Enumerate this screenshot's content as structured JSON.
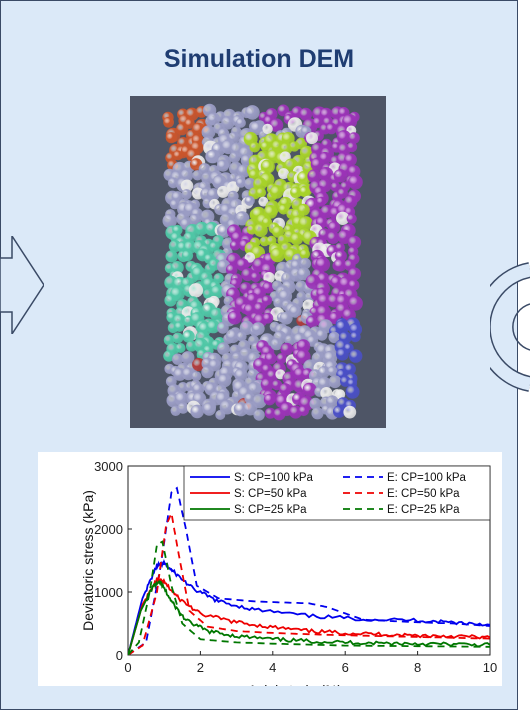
{
  "panel": {
    "title": "Simulation DEM"
  },
  "render": {
    "description_colors": [
      "#9a9cc4",
      "#9b33b7",
      "#a7d229",
      "#4fc7a6",
      "#c9552c",
      "#4a4fc6",
      "#e7e7e7",
      "#b03c3c"
    ]
  },
  "chart_data": {
    "type": "line",
    "xlabel": "Axial strain (%)",
    "ylabel": "Deviatoric stress (kPa)",
    "xlim": [
      0,
      10
    ],
    "ylim": [
      0,
      3000
    ],
    "xticks": [
      "0",
      "2",
      "4",
      "6",
      "8",
      "10"
    ],
    "yticks": [
      "0",
      "1000",
      "2000",
      "3000"
    ],
    "legend_position": "top-right",
    "series": [
      {
        "name": "S: CP=100 kPa",
        "color": "#0000ee",
        "dash": "solid",
        "x": [
          0,
          0.4,
          0.8,
          1.0,
          1.3,
          1.8,
          2.5,
          3.5,
          5,
          6.5,
          8,
          9,
          10
        ],
        "y": [
          0,
          900,
          1420,
          1450,
          1300,
          1050,
          850,
          720,
          620,
          570,
          550,
          520,
          480
        ]
      },
      {
        "name": "E: CP=100 kPa",
        "color": "#0000ee",
        "dash": "dashed",
        "x": [
          0,
          0.5,
          0.9,
          1.2,
          1.35,
          1.6,
          1.9,
          2.5,
          3.5,
          5,
          5.5,
          6.5,
          8,
          9,
          10
        ],
        "y": [
          0,
          200,
          1400,
          2580,
          2650,
          2000,
          1100,
          900,
          850,
          820,
          760,
          560,
          520,
          500,
          460
        ]
      },
      {
        "name": "S: CP=50 kPa",
        "color": "#ee0000",
        "dash": "solid",
        "x": [
          0,
          0.4,
          0.8,
          1.0,
          1.4,
          2,
          3,
          4,
          5,
          6,
          7,
          8,
          9,
          10
        ],
        "y": [
          0,
          800,
          1200,
          1150,
          900,
          650,
          520,
          440,
          380,
          350,
          330,
          310,
          300,
          280
        ]
      },
      {
        "name": "E: CP=50 kPa",
        "color": "#ee0000",
        "dash": "dashed",
        "x": [
          0,
          0.4,
          0.8,
          1.05,
          1.2,
          1.4,
          1.7,
          2.2,
          3,
          4,
          5.5,
          7,
          8.5,
          10
        ],
        "y": [
          0,
          150,
          1000,
          2050,
          2250,
          1600,
          700,
          450,
          380,
          350,
          320,
          300,
          280,
          260
        ]
      },
      {
        "name": "S: CP=25 kPa",
        "color": "#007700",
        "dash": "solid",
        "x": [
          0,
          0.35,
          0.7,
          0.9,
          1.2,
          1.6,
          2.2,
          3,
          4,
          5,
          6,
          7,
          8,
          9,
          10
        ],
        "y": [
          0,
          700,
          1100,
          1150,
          850,
          550,
          380,
          300,
          250,
          220,
          200,
          190,
          180,
          170,
          160
        ]
      },
      {
        "name": "E: CP=25 kPa",
        "color": "#007700",
        "dash": "dashed",
        "x": [
          0,
          0.3,
          0.6,
          0.8,
          0.95,
          1.2,
          1.5,
          2,
          3,
          4,
          6,
          8,
          10
        ],
        "y": [
          0,
          200,
          1000,
          1750,
          1800,
          1100,
          500,
          250,
          200,
          180,
          150,
          140,
          130
        ]
      }
    ]
  }
}
